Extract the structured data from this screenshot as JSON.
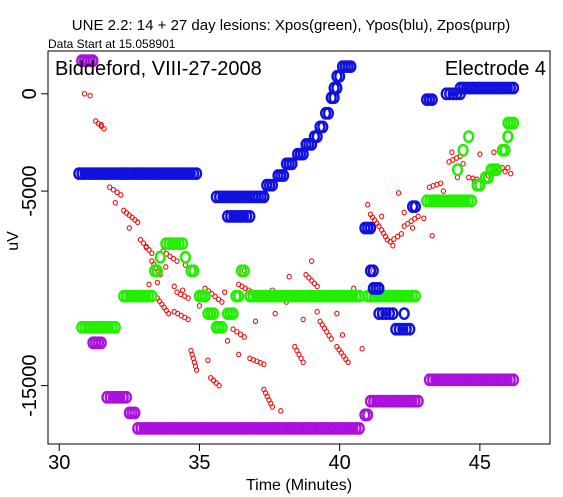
{
  "chart_data": {
    "type": "scatter",
    "title": "UNE 2.2: 14 + 27 day lesions: Xpos(green), Ypos(blu), Zpos(purp)",
    "subtitle": "Data Start at 15.058901",
    "annotation_left": "Biddeford, VIII-27-2008",
    "annotation_right": "Electrode 4",
    "xlabel": "Time (Minutes)",
    "ylabel": "uV",
    "xlim": [
      29.6,
      47.5
    ],
    "ylim": [
      -18000,
      2200
    ],
    "xticks": [
      30,
      35,
      40,
      45
    ],
    "yticks": [
      0,
      -5000,
      -15000
    ],
    "xtick_labels": [
      "30",
      "35",
      "40",
      "45"
    ],
    "ytick_labels": [
      "0",
      "-5000",
      "-15000"
    ],
    "grid": false,
    "series": [
      {
        "color": "#ee1111",
        "marker": "small-circle",
        "segments": [
          [
            30.9,
            0,
            31.1,
            -100
          ],
          [
            31.3,
            -1400,
            31.6,
            -1800
          ],
          [
            31.8,
            -4800,
            32.2,
            -5200
          ],
          [
            32.3,
            -6000,
            32.8,
            -6600
          ],
          [
            32.9,
            -7500,
            33.3,
            -8200
          ],
          [
            33.3,
            -8600,
            33.6,
            -9300
          ],
          [
            33.5,
            -10500,
            33.9,
            -11300
          ],
          [
            33.7,
            -8100,
            34.2,
            -8600
          ],
          [
            34.1,
            -11200,
            34.6,
            -11600
          ],
          [
            34.2,
            -10200,
            34.6,
            -10500
          ],
          [
            34.7,
            -13200,
            34.9,
            -14200
          ],
          [
            35.2,
            -10000,
            35.8,
            -10700
          ],
          [
            35.4,
            -14600,
            35.7,
            -15000
          ],
          [
            36.2,
            -12100,
            36.6,
            -12500
          ],
          [
            36.4,
            -9800,
            37.1,
            -10400
          ],
          [
            36.8,
            -13600,
            37.3,
            -13900
          ],
          [
            37.3,
            -15200,
            37.6,
            -16100
          ],
          [
            37.6,
            -10100,
            38.1,
            -10700
          ],
          [
            38.4,
            -13000,
            38.7,
            -13800
          ],
          [
            38.8,
            -9300,
            39.2,
            -9900
          ],
          [
            39.3,
            -11700,
            39.7,
            -12600
          ],
          [
            39.9,
            -13000,
            40.3,
            -13800
          ],
          [
            41.1,
            -6200,
            41.4,
            -6800
          ],
          [
            41.5,
            -7000,
            41.7,
            -7500
          ],
          [
            41.8,
            -7600,
            42.2,
            -7200
          ],
          [
            42.3,
            -6800,
            42.8,
            -6300
          ],
          [
            43.2,
            -4800,
            43.6,
            -4600
          ],
          [
            43.9,
            -3500,
            44.3,
            -3200
          ],
          [
            44.6,
            -4300,
            44.9,
            -4400
          ],
          [
            45.3,
            -4200,
            45.8,
            -3800
          ]
        ],
        "scatter": [
          [
            31.5,
            -1600
          ],
          [
            32.0,
            -5600
          ],
          [
            32.5,
            -6900
          ],
          [
            33.1,
            -7900
          ],
          [
            33.2,
            -9800
          ],
          [
            33.5,
            -9700
          ],
          [
            33.8,
            -8900
          ],
          [
            34.1,
            -9900
          ],
          [
            34.4,
            -10100
          ],
          [
            34.5,
            -8800
          ],
          [
            35.0,
            -10900
          ],
          [
            35.3,
            -13700
          ],
          [
            35.9,
            -10200
          ],
          [
            36.0,
            -12700
          ],
          [
            36.4,
            -13400
          ],
          [
            36.6,
            -9100
          ],
          [
            37.0,
            -11700
          ],
          [
            37.7,
            -11300
          ],
          [
            37.9,
            -16300
          ],
          [
            38.2,
            -9400
          ],
          [
            38.5,
            -10400
          ],
          [
            38.7,
            -11600
          ],
          [
            39.0,
            -8600
          ],
          [
            39.2,
            -11200
          ],
          [
            39.5,
            -10400
          ],
          [
            39.9,
            -11300
          ],
          [
            40.1,
            -12400
          ],
          [
            40.5,
            -10000
          ],
          [
            40.8,
            -13100
          ],
          [
            41.0,
            -5700
          ],
          [
            41.2,
            -9100
          ],
          [
            41.5,
            -6300
          ],
          [
            41.9,
            -7800
          ],
          [
            42.1,
            -5100
          ],
          [
            42.3,
            -6100
          ],
          [
            42.6,
            -6900
          ],
          [
            43.0,
            -6400
          ],
          [
            43.3,
            -7300
          ],
          [
            43.7,
            -5000
          ],
          [
            44.0,
            -3000
          ],
          [
            44.2,
            -4300
          ],
          [
            44.4,
            -3600
          ],
          [
            44.8,
            -4500
          ],
          [
            45.0,
            -3100
          ],
          [
            45.5,
            -3000
          ],
          [
            45.9,
            -4000
          ],
          [
            46.0,
            -3800
          ],
          [
            46.1,
            -4100
          ]
        ]
      },
      {
        "name": "Xpos",
        "color": "#22ee00",
        "marker": "ring",
        "segments": [
          [
            30.8,
            -12000,
            32.0,
            -12000
          ],
          [
            32.3,
            -10400,
            33.3,
            -10400
          ],
          [
            33.4,
            -9100,
            33.5,
            -9100
          ],
          [
            33.6,
            -8400,
            33.6,
            -8400
          ],
          [
            33.8,
            -7700,
            34.4,
            -7700
          ],
          [
            34.5,
            -8400,
            34.5,
            -8400
          ],
          [
            34.7,
            -9100,
            34.8,
            -9100
          ],
          [
            35.0,
            -10400,
            35.2,
            -10400
          ],
          [
            35.3,
            -11300,
            35.5,
            -11300
          ],
          [
            35.6,
            -12000,
            35.8,
            -12000
          ],
          [
            36.0,
            -11300,
            36.2,
            -11300
          ],
          [
            36.3,
            -10400,
            36.4,
            -10400
          ],
          [
            36.5,
            -9100,
            36.6,
            -9100
          ],
          [
            36.8,
            -10400,
            40.7,
            -10400
          ],
          [
            41.0,
            -10400,
            42.7,
            -10400
          ],
          [
            43.1,
            -5500,
            44.7,
            -5500
          ],
          [
            44.9,
            -4700,
            45.0,
            -4700
          ],
          [
            45.2,
            -4300,
            45.3,
            -4300
          ],
          [
            45.4,
            -3900,
            45.6,
            -3900
          ],
          [
            45.8,
            -2900,
            45.9,
            -2900
          ],
          [
            46.0,
            -2200,
            46.0,
            -2200
          ],
          [
            46.0,
            -1500,
            46.2,
            -1500
          ]
        ],
        "scatter": [
          [
            44.2,
            -3900
          ],
          [
            44.4,
            -2900
          ],
          [
            44.6,
            -2200
          ]
        ]
      },
      {
        "name": "Ypos",
        "color": "#1111dd",
        "marker": "ring",
        "segments": [
          [
            30.7,
            -4100,
            34.9,
            -4100
          ],
          [
            35.6,
            -5300,
            36.9,
            -5300
          ],
          [
            36.0,
            -6300,
            36.8,
            -6300
          ],
          [
            37.0,
            -5300,
            37.3,
            -5300
          ],
          [
            37.4,
            -4700,
            37.6,
            -4700
          ],
          [
            37.8,
            -4200,
            38.0,
            -4200
          ],
          [
            38.1,
            -3600,
            38.3,
            -3600
          ],
          [
            38.5,
            -3100,
            38.7,
            -3100
          ],
          [
            38.8,
            -2600,
            39.0,
            -2600
          ],
          [
            39.1,
            -2200,
            39.2,
            -2200
          ],
          [
            39.3,
            -1700,
            39.4,
            -1700
          ],
          [
            39.5,
            -1000,
            39.6,
            -1000
          ],
          [
            39.7,
            -200,
            39.8,
            -200
          ],
          [
            39.8,
            300,
            39.9,
            300
          ],
          [
            39.9,
            900,
            40.0,
            900
          ],
          [
            40.1,
            1400,
            40.4,
            1400
          ],
          [
            40.9,
            -6900,
            41.1,
            -6900
          ],
          [
            41.1,
            -9100,
            41.2,
            -9100
          ],
          [
            41.2,
            -10000,
            41.4,
            -10000
          ],
          [
            41.4,
            -11300,
            41.9,
            -11300
          ],
          [
            42.0,
            -12100,
            42.5,
            -12100
          ],
          [
            42.6,
            -5800,
            42.7,
            -5800
          ],
          [
            43.1,
            -300,
            43.3,
            -300
          ],
          [
            43.8,
            0,
            44.3,
            0
          ],
          [
            44.3,
            300,
            46.2,
            300
          ]
        ],
        "scatter": [
          [
            41.4,
            -10000
          ],
          [
            42.3,
            -11300
          ]
        ]
      },
      {
        "name": "Zpos",
        "color": "#aa11dd",
        "marker": "ring",
        "segments": [
          [
            30.8,
            1700,
            31.2,
            1700
          ],
          [
            31.2,
            -12800,
            31.5,
            -12800
          ],
          [
            31.7,
            -15600,
            32.4,
            -15600
          ],
          [
            32.5,
            -16400,
            32.7,
            -16400
          ],
          [
            32.8,
            -17200,
            40.7,
            -17200
          ],
          [
            40.9,
            -16500,
            41.0,
            -16500
          ],
          [
            41.1,
            -15800,
            42.8,
            -15800
          ],
          [
            43.2,
            -14700,
            46.2,
            -14700
          ]
        ],
        "scatter": []
      }
    ]
  }
}
